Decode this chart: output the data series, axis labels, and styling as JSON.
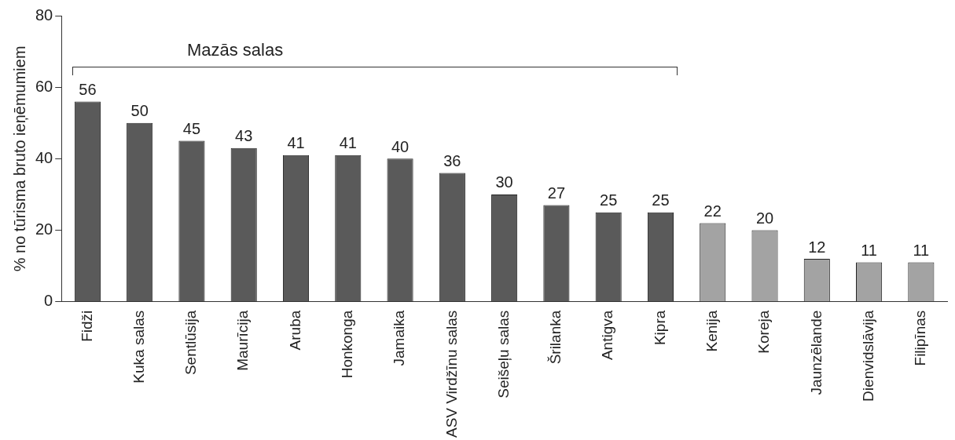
{
  "chart_data": {
    "type": "bar",
    "ylabel": "% no tūrisma bruto ieņēmumiem",
    "categories": [
      "Fidži",
      "Kuka salas",
      "Sentlūsija",
      "Maurīcija",
      "Aruba",
      "Honkonga",
      "Jamaika",
      "ASV Virdžīnu salas",
      "Seišeļu salas",
      "Šrilanka",
      "Antigva",
      "Kipra",
      "Kenija",
      "Koreja",
      "Jaunzēlande",
      "Dienvidslāvija",
      "Filipīnas"
    ],
    "values": [
      56,
      50,
      45,
      43,
      41,
      41,
      40,
      36,
      30,
      27,
      25,
      25,
      22,
      20,
      12,
      11,
      11
    ],
    "colors": [
      "#5a5a5a",
      "#5a5a5a",
      "#5a5a5a",
      "#5a5a5a",
      "#5a5a5a",
      "#5a5a5a",
      "#5a5a5a",
      "#5a5a5a",
      "#5a5a5a",
      "#5a5a5a",
      "#5a5a5a",
      "#5a5a5a",
      "#a3a3a3",
      "#a3a3a3",
      "#a3a3a3",
      "#a3a3a3",
      "#a3a3a3"
    ],
    "ylim": [
      0,
      80
    ],
    "yticks": [
      0,
      20,
      40,
      60,
      80
    ],
    "grid": false,
    "legend": false,
    "data_labels": true,
    "annotations": [
      "Mazās salas"
    ]
  }
}
